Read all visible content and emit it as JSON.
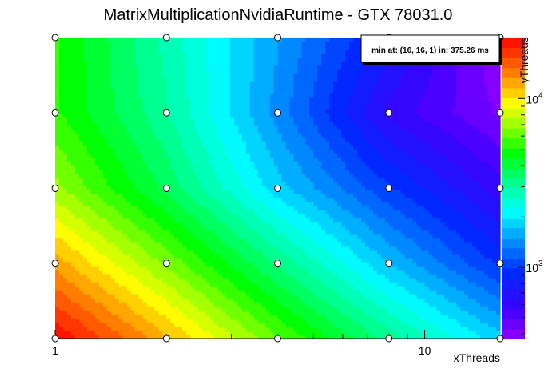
{
  "chart_data": {
    "type": "heatmap",
    "title": "MatrixMultiplicationNvidiaRuntime - GTX 78031.0",
    "xlabel": "xThreads",
    "ylabel": "yThreads",
    "x_scale": "log",
    "y_scale": "log",
    "z_scale": "log",
    "x": [
      1,
      2,
      4,
      8,
      16
    ],
    "y": [
      1,
      2,
      4,
      8,
      16
    ],
    "xlim": [
      1,
      16
    ],
    "ylim": [
      1,
      16
    ],
    "zlim": [
      375.26,
      23000
    ],
    "x_ticks": [
      1,
      10
    ],
    "z_ticks": [
      {
        "base": "10",
        "exp": "3",
        "value": 1000
      },
      {
        "base": "10",
        "exp": "4",
        "value": 10000
      }
    ],
    "grid": false,
    "palette": "rainbow, violet = low, red = high",
    "annotation": "min at: (16, 16, 1) in: 375.26 ms",
    "annotation_placement": "top-right",
    "points": [
      {
        "x": 1,
        "y": 1,
        "z": 23000
      },
      {
        "x": 2,
        "y": 1,
        "z": 12000
      },
      {
        "x": 4,
        "y": 1,
        "z": 6000
      },
      {
        "x": 8,
        "y": 1,
        "z": 3200
      },
      {
        "x": 16,
        "y": 1,
        "z": 1800
      },
      {
        "x": 1,
        "y": 2,
        "z": 12500
      },
      {
        "x": 2,
        "y": 2,
        "z": 6500
      },
      {
        "x": 4,
        "y": 2,
        "z": 3300
      },
      {
        "x": 8,
        "y": 2,
        "z": 1700
      },
      {
        "x": 16,
        "y": 2,
        "z": 950
      },
      {
        "x": 1,
        "y": 4,
        "z": 7000
      },
      {
        "x": 2,
        "y": 4,
        "z": 3700
      },
      {
        "x": 4,
        "y": 4,
        "z": 1800
      },
      {
        "x": 8,
        "y": 4,
        "z": 1000
      },
      {
        "x": 16,
        "y": 4,
        "z": 600
      },
      {
        "x": 1,
        "y": 8,
        "z": 5200
      },
      {
        "x": 2,
        "y": 8,
        "z": 3000
      },
      {
        "x": 4,
        "y": 8,
        "z": 1400
      },
      {
        "x": 8,
        "y": 8,
        "z": 620
      },
      {
        "x": 16,
        "y": 8,
        "z": 420
      },
      {
        "x": 1,
        "y": 16,
        "z": 5200
      },
      {
        "x": 2,
        "y": 16,
        "z": 2800
      },
      {
        "x": 4,
        "y": 16,
        "z": 1500
      },
      {
        "x": 8,
        "y": 16,
        "z": 800
      },
      {
        "x": 16,
        "y": 16,
        "z": 375.26
      }
    ]
  }
}
